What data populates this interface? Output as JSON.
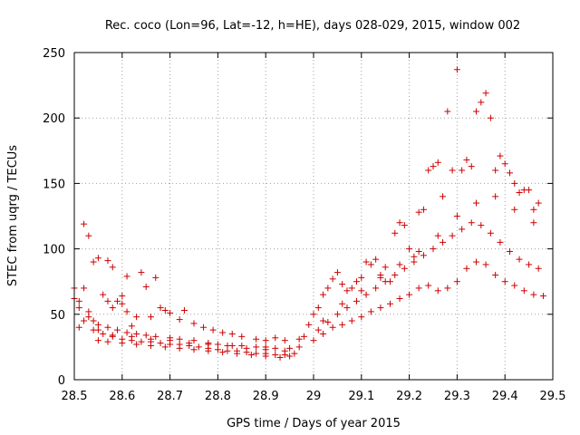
{
  "chart_data": {
    "type": "scatter",
    "title": "Rec. coco (Lon=96, Lat=-12, h=HE), days 028-029, 2015, window 002",
    "xlabel": "GPS time / Days of year 2015",
    "ylabel": "STEC from uqrg / TECUs",
    "xlim": [
      28.5,
      29.5
    ],
    "ylim": [
      0,
      250
    ],
    "xticks": [
      "28.5",
      "28.6",
      "28.7",
      "28.8",
      "28.9",
      "29",
      "29.1",
      "29.2",
      "29.3",
      "29.4",
      "29.5"
    ],
    "yticks": [
      "0",
      "50",
      "100",
      "150",
      "200",
      "250"
    ],
    "grid": true,
    "marker": "plus",
    "color": "#cc0000",
    "series": [
      {
        "points": [
          [
            28.5,
            70
          ],
          [
            28.5,
            62
          ],
          [
            28.51,
            60
          ],
          [
            28.51,
            40
          ],
          [
            28.52,
            119
          ],
          [
            28.52,
            70
          ],
          [
            28.53,
            110
          ],
          [
            28.53,
            52
          ],
          [
            28.54,
            90
          ],
          [
            28.54,
            45
          ],
          [
            28.55,
            93
          ],
          [
            28.55,
            38
          ],
          [
            28.56,
            65
          ],
          [
            28.57,
            91
          ],
          [
            28.57,
            60
          ],
          [
            28.58,
            86
          ],
          [
            28.58,
            55
          ],
          [
            28.59,
            60
          ],
          [
            28.6,
            64
          ],
          [
            28.6,
            58
          ],
          [
            28.61,
            79
          ],
          [
            28.61,
            52
          ],
          [
            28.62,
            41
          ],
          [
            28.63,
            48
          ],
          [
            28.64,
            82
          ],
          [
            28.65,
            71
          ],
          [
            28.66,
            48
          ],
          [
            28.67,
            78
          ],
          [
            28.68,
            55
          ],
          [
            28.69,
            53
          ],
          [
            28.7,
            51
          ],
          [
            28.72,
            46
          ],
          [
            28.73,
            53
          ],
          [
            28.75,
            43
          ],
          [
            28.77,
            40
          ],
          [
            28.79,
            38
          ],
          [
            28.81,
            36
          ],
          [
            28.83,
            35
          ],
          [
            28.85,
            33
          ],
          [
            28.88,
            31
          ],
          [
            28.9,
            30
          ],
          [
            28.92,
            32
          ],
          [
            28.94,
            30
          ],
          [
            28.97,
            31
          ],
          [
            28.98,
            33
          ],
          [
            28.51,
            55
          ],
          [
            28.53,
            48
          ],
          [
            28.55,
            42
          ],
          [
            28.57,
            40
          ],
          [
            28.59,
            38
          ],
          [
            28.61,
            36
          ],
          [
            28.63,
            35
          ],
          [
            28.65,
            34
          ],
          [
            28.67,
            33
          ],
          [
            28.7,
            32
          ],
          [
            28.72,
            31
          ],
          [
            28.75,
            30
          ],
          [
            28.78,
            28
          ],
          [
            28.8,
            27
          ],
          [
            28.83,
            26
          ],
          [
            28.85,
            26
          ],
          [
            28.88,
            25
          ],
          [
            28.9,
            25
          ],
          [
            28.92,
            24
          ],
          [
            28.95,
            24
          ],
          [
            28.97,
            25
          ],
          [
            28.52,
            45
          ],
          [
            28.54,
            38
          ],
          [
            28.56,
            35
          ],
          [
            28.58,
            33
          ],
          [
            28.6,
            31
          ],
          [
            28.62,
            30
          ],
          [
            28.64,
            29
          ],
          [
            28.66,
            29
          ],
          [
            28.68,
            28
          ],
          [
            28.7,
            27
          ],
          [
            28.72,
            27
          ],
          [
            28.74,
            26
          ],
          [
            28.76,
            25
          ],
          [
            28.78,
            24
          ],
          [
            28.8,
            23
          ],
          [
            28.82,
            22
          ],
          [
            28.84,
            22
          ],
          [
            28.86,
            21
          ],
          [
            28.88,
            20
          ],
          [
            28.9,
            20
          ],
          [
            28.92,
            19
          ],
          [
            28.94,
            19
          ],
          [
            28.96,
            20
          ],
          [
            28.55,
            30
          ],
          [
            28.57,
            29
          ],
          [
            28.6,
            28
          ],
          [
            28.63,
            27
          ],
          [
            28.66,
            26
          ],
          [
            28.69,
            25
          ],
          [
            28.72,
            24
          ],
          [
            28.75,
            23
          ],
          [
            28.78,
            22
          ],
          [
            28.81,
            21
          ],
          [
            28.84,
            20
          ],
          [
            28.87,
            19
          ],
          [
            28.9,
            18
          ],
          [
            28.93,
            17
          ],
          [
            28.95,
            18
          ],
          [
            28.58,
            34
          ],
          [
            28.62,
            33
          ],
          [
            28.66,
            31
          ],
          [
            28.7,
            30
          ],
          [
            28.74,
            28
          ],
          [
            28.78,
            27
          ],
          [
            28.82,
            26
          ],
          [
            28.86,
            24
          ],
          [
            28.9,
            23
          ],
          [
            28.94,
            22
          ],
          [
            28.99,
            42
          ],
          [
            29.0,
            50
          ],
          [
            29.01,
            55
          ],
          [
            29.02,
            65
          ],
          [
            29.03,
            70
          ],
          [
            29.04,
            77
          ],
          [
            29.05,
            82
          ],
          [
            29.06,
            73
          ],
          [
            29.07,
            68
          ],
          [
            29.08,
            70
          ],
          [
            29.09,
            75
          ],
          [
            29.1,
            78
          ],
          [
            29.11,
            90
          ],
          [
            29.12,
            88
          ],
          [
            29.13,
            92
          ],
          [
            29.14,
            80
          ],
          [
            29.15,
            86
          ],
          [
            29.16,
            75
          ],
          [
            29.17,
            112
          ],
          [
            29.18,
            120
          ],
          [
            29.19,
            118
          ],
          [
            29.2,
            100
          ],
          [
            29.21,
            94
          ],
          [
            29.22,
            128
          ],
          [
            29.23,
            130
          ],
          [
            29.24,
            160
          ],
          [
            29.25,
            163
          ],
          [
            29.26,
            166
          ],
          [
            29.27,
            140
          ],
          [
            29.28,
            205
          ],
          [
            29.29,
            160
          ],
          [
            29.3,
            237
          ],
          [
            29.31,
            160
          ],
          [
            29.32,
            168
          ],
          [
            29.33,
            163
          ],
          [
            29.34,
            205
          ],
          [
            29.35,
            212
          ],
          [
            29.36,
            219
          ],
          [
            29.37,
            200
          ],
          [
            29.38,
            160
          ],
          [
            29.39,
            171
          ],
          [
            29.4,
            165
          ],
          [
            29.41,
            158
          ],
          [
            29.42,
            150
          ],
          [
            29.43,
            143
          ],
          [
            29.44,
            145
          ],
          [
            29.45,
            145
          ],
          [
            29.46,
            130
          ],
          [
            29.47,
            135
          ],
          [
            29.0,
            30
          ],
          [
            29.02,
            35
          ],
          [
            29.04,
            40
          ],
          [
            29.06,
            42
          ],
          [
            29.08,
            45
          ],
          [
            29.1,
            48
          ],
          [
            29.12,
            52
          ],
          [
            29.14,
            55
          ],
          [
            29.16,
            58
          ],
          [
            29.18,
            62
          ],
          [
            29.2,
            65
          ],
          [
            29.22,
            70
          ],
          [
            29.24,
            72
          ],
          [
            29.26,
            68
          ],
          [
            29.28,
            70
          ],
          [
            29.3,
            75
          ],
          [
            29.32,
            85
          ],
          [
            29.34,
            90
          ],
          [
            29.36,
            88
          ],
          [
            29.38,
            80
          ],
          [
            29.4,
            75
          ],
          [
            29.42,
            72
          ],
          [
            29.44,
            68
          ],
          [
            29.46,
            65
          ],
          [
            29.48,
            64
          ],
          [
            29.01,
            38
          ],
          [
            29.03,
            44
          ],
          [
            29.05,
            50
          ],
          [
            29.07,
            55
          ],
          [
            29.09,
            60
          ],
          [
            29.11,
            65
          ],
          [
            29.13,
            70
          ],
          [
            29.15,
            75
          ],
          [
            29.17,
            80
          ],
          [
            29.19,
            85
          ],
          [
            29.21,
            90
          ],
          [
            29.23,
            95
          ],
          [
            29.25,
            100
          ],
          [
            29.27,
            105
          ],
          [
            29.29,
            110
          ],
          [
            29.31,
            115
          ],
          [
            29.33,
            120
          ],
          [
            29.35,
            118
          ],
          [
            29.37,
            112
          ],
          [
            29.39,
            105
          ],
          [
            29.41,
            98
          ],
          [
            29.43,
            92
          ],
          [
            29.45,
            88
          ],
          [
            29.47,
            85
          ],
          [
            29.02,
            45
          ],
          [
            29.06,
            58
          ],
          [
            29.1,
            68
          ],
          [
            29.14,
            78
          ],
          [
            29.18,
            88
          ],
          [
            29.22,
            98
          ],
          [
            29.26,
            110
          ],
          [
            29.3,
            125
          ],
          [
            29.34,
            135
          ],
          [
            29.38,
            140
          ],
          [
            29.42,
            130
          ],
          [
            29.46,
            120
          ]
        ]
      }
    ]
  }
}
